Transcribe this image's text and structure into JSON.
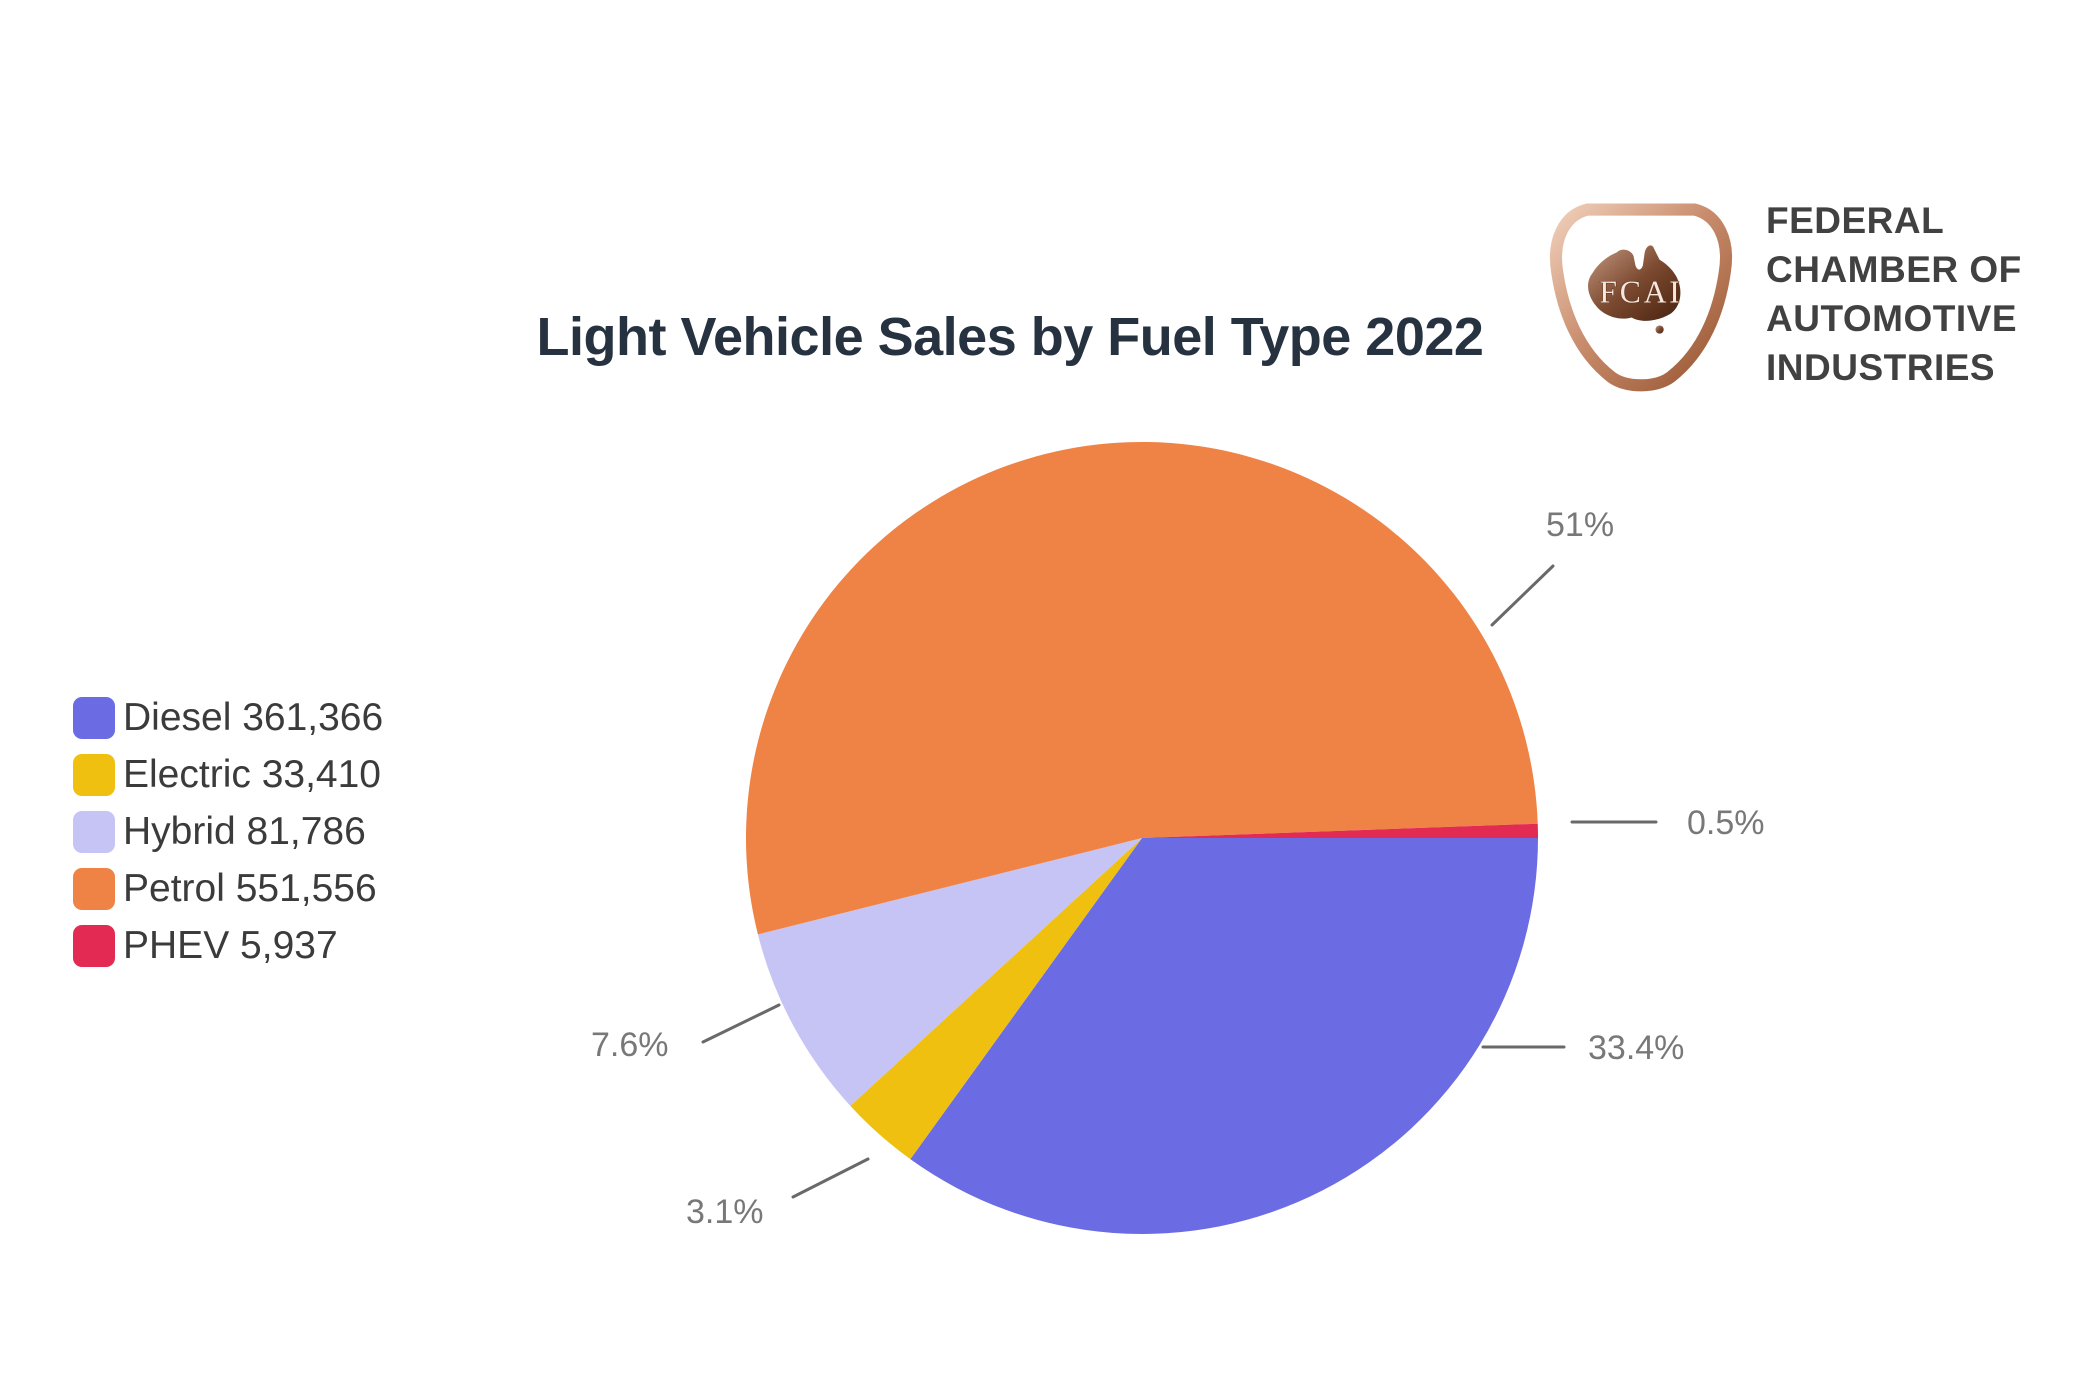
{
  "title": "Light Vehicle Sales by Fuel Type 2022",
  "logo": {
    "monogram": "FCAI",
    "org_name_lines": [
      "FEDERAL",
      "CHAMBER OF",
      "AUTOMOTIVE",
      "INDUSTRIES"
    ]
  },
  "chart_data": {
    "type": "pie",
    "title": "Light Vehicle Sales by Fuel Type 2022",
    "legend_position": "left",
    "start_angle_deg": 0,
    "direction": "clockwise",
    "series": [
      {
        "name": "Diesel",
        "value": 361366,
        "legend_label": "Diesel 361,366",
        "percent_label": "33.4%",
        "color": "#6b6ce3"
      },
      {
        "name": "Electric",
        "value": 33410,
        "legend_label": "Electric 33,410",
        "percent_label": "3.1%",
        "color": "#f0c011"
      },
      {
        "name": "Hybrid",
        "value": 81786,
        "legend_label": "Hybrid 81,786",
        "percent_label": "7.6%",
        "color": "#c5c4f5"
      },
      {
        "name": "Petrol",
        "value": 551556,
        "legend_label": "Petrol 551,556",
        "percent_label": "51%",
        "color": "#ef8245"
      },
      {
        "name": "PHEV",
        "value": 5937,
        "legend_label": "PHEV 5,937",
        "percent_label": "0.5%",
        "color": "#e22a52"
      }
    ]
  }
}
